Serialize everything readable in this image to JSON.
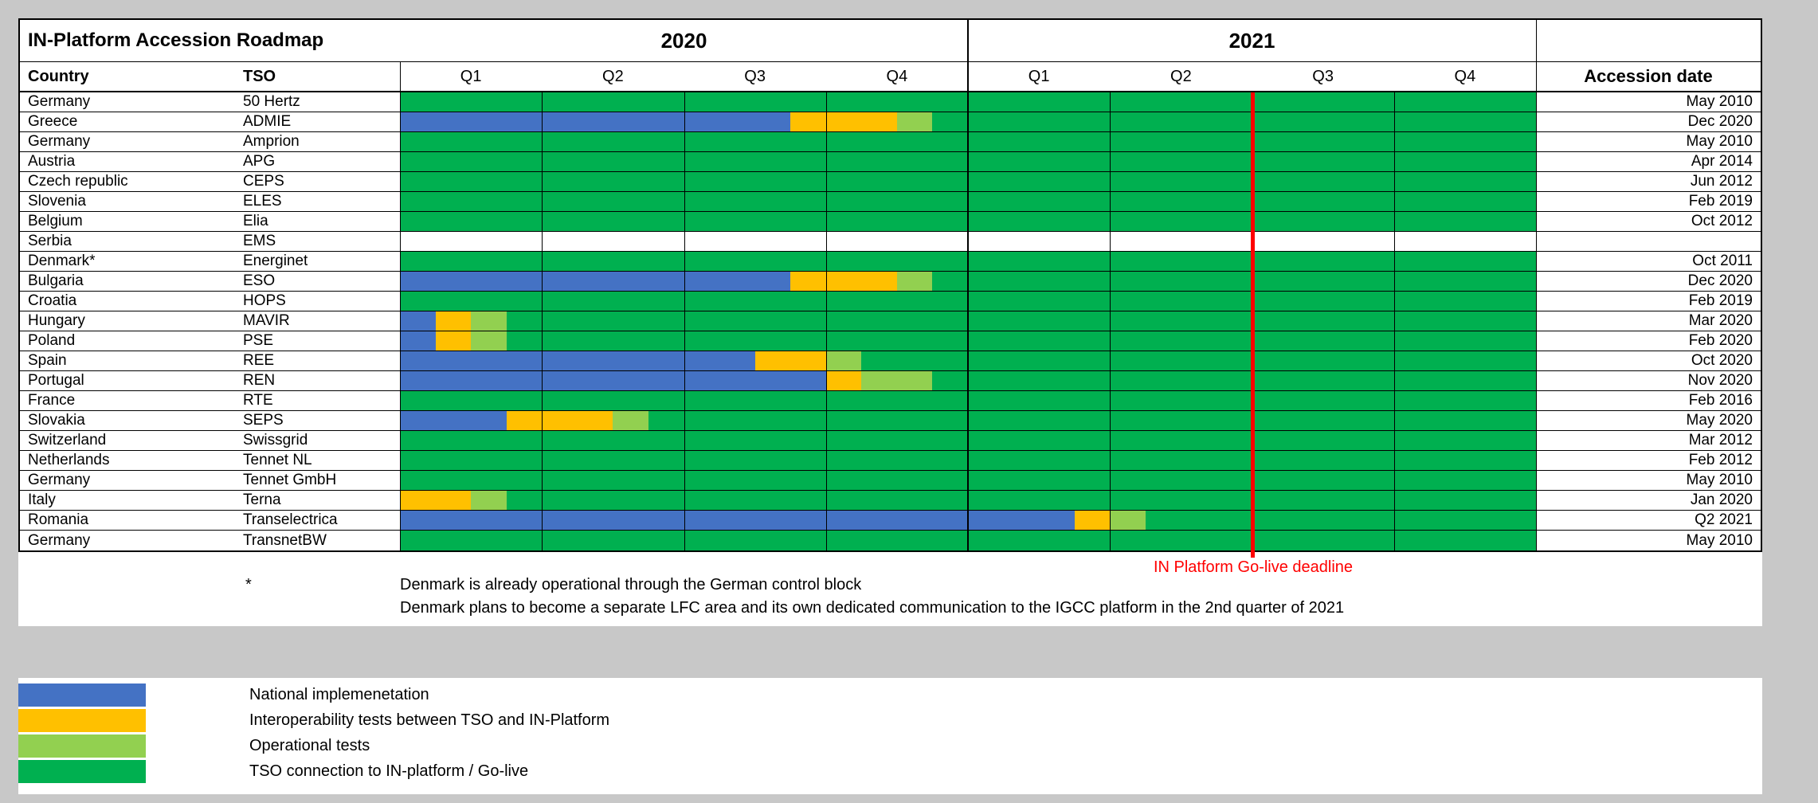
{
  "chart_data": {
    "type": "table",
    "subtype": "gantt-roadmap",
    "title": "IN-Platform Accession Roadmap",
    "canvas_bg": "#c8c8c8",
    "years": [
      {
        "label": "2020",
        "quarters": [
          "Q1",
          "Q2",
          "Q3",
          "Q4"
        ]
      },
      {
        "label": "2021",
        "quarters": [
          "Q1",
          "Q2",
          "Q3",
          "Q4"
        ]
      }
    ],
    "columns": {
      "country": "Country",
      "tso": "TSO",
      "accession": "Accession date"
    },
    "quarter_axis": {
      "min": 0,
      "max": 8,
      "unit": "quarters from start of 2020"
    },
    "phase_colors": {
      "national": "#4472C4",
      "interop": "#FFC000",
      "operational": "#92D050",
      "golive": "#00B050"
    },
    "deadline": {
      "label": "IN Platform Go-live deadline",
      "at_quarter": 6,
      "color": "#FF0000"
    },
    "rows": [
      {
        "country": "Germany",
        "tso": "50 Hertz",
        "accession_date": "May 2010",
        "segments": [
          {
            "phase": "golive",
            "from": 0,
            "to": 8
          }
        ]
      },
      {
        "country": "Greece",
        "tso": "ADMIE",
        "accession_date": "Dec 2020",
        "segments": [
          {
            "phase": "national",
            "from": 0,
            "to": 2.75
          },
          {
            "phase": "interop",
            "from": 2.75,
            "to": 3.5
          },
          {
            "phase": "operational",
            "from": 3.5,
            "to": 3.75
          },
          {
            "phase": "golive",
            "from": 3.75,
            "to": 8
          }
        ]
      },
      {
        "country": "Germany",
        "tso": "Amprion",
        "accession_date": "May 2010",
        "segments": [
          {
            "phase": "golive",
            "from": 0,
            "to": 8
          }
        ]
      },
      {
        "country": "Austria",
        "tso": "APG",
        "accession_date": "Apr 2014",
        "segments": [
          {
            "phase": "golive",
            "from": 0,
            "to": 8
          }
        ]
      },
      {
        "country": "Czech republic",
        "tso": "CEPS",
        "accession_date": "Jun 2012",
        "segments": [
          {
            "phase": "golive",
            "from": 0,
            "to": 8
          }
        ]
      },
      {
        "country": "Slovenia",
        "tso": "ELES",
        "accession_date": "Feb 2019",
        "segments": [
          {
            "phase": "golive",
            "from": 0,
            "to": 8
          }
        ]
      },
      {
        "country": "Belgium",
        "tso": "Elia",
        "accession_date": "Oct 2012",
        "segments": [
          {
            "phase": "golive",
            "from": 0,
            "to": 8
          }
        ]
      },
      {
        "country": "Serbia",
        "tso": "EMS",
        "accession_date": "",
        "segments": []
      },
      {
        "country": "Denmark*",
        "tso": "Energinet",
        "accession_date": "Oct 2011",
        "segments": [
          {
            "phase": "golive",
            "from": 0,
            "to": 8
          }
        ]
      },
      {
        "country": "Bulgaria",
        "tso": "ESO",
        "accession_date": "Dec 2020",
        "segments": [
          {
            "phase": "national",
            "from": 0,
            "to": 2.75
          },
          {
            "phase": "interop",
            "from": 2.75,
            "to": 3.5
          },
          {
            "phase": "operational",
            "from": 3.5,
            "to": 3.75
          },
          {
            "phase": "golive",
            "from": 3.75,
            "to": 8
          }
        ]
      },
      {
        "country": "Croatia",
        "tso": "HOPS",
        "accession_date": "Feb 2019",
        "segments": [
          {
            "phase": "golive",
            "from": 0,
            "to": 8
          }
        ]
      },
      {
        "country": "Hungary",
        "tso": "MAVIR",
        "accession_date": "Mar 2020",
        "segments": [
          {
            "phase": "national",
            "from": 0,
            "to": 0.25
          },
          {
            "phase": "interop",
            "from": 0.25,
            "to": 0.5
          },
          {
            "phase": "operational",
            "from": 0.5,
            "to": 0.75
          },
          {
            "phase": "golive",
            "from": 0.75,
            "to": 8
          }
        ]
      },
      {
        "country": "Poland",
        "tso": "PSE",
        "accession_date": "Feb 2020",
        "segments": [
          {
            "phase": "national",
            "from": 0,
            "to": 0.25
          },
          {
            "phase": "interop",
            "from": 0.25,
            "to": 0.5
          },
          {
            "phase": "operational",
            "from": 0.5,
            "to": 0.75
          },
          {
            "phase": "golive",
            "from": 0.75,
            "to": 8
          }
        ]
      },
      {
        "country": "Spain",
        "tso": "REE",
        "accession_date": "Oct 2020",
        "segments": [
          {
            "phase": "national",
            "from": 0,
            "to": 2.5
          },
          {
            "phase": "interop",
            "from": 2.5,
            "to": 3
          },
          {
            "phase": "operational",
            "from": 3,
            "to": 3.25
          },
          {
            "phase": "golive",
            "from": 3.25,
            "to": 8
          }
        ]
      },
      {
        "country": "Portugal",
        "tso": "REN",
        "accession_date": "Nov 2020",
        "segments": [
          {
            "phase": "national",
            "from": 0,
            "to": 3
          },
          {
            "phase": "interop",
            "from": 3,
            "to": 3.25
          },
          {
            "phase": "operational",
            "from": 3.25,
            "to": 3.75
          },
          {
            "phase": "golive",
            "from": 3.75,
            "to": 8
          }
        ]
      },
      {
        "country": "France",
        "tso": "RTE",
        "accession_date": "Feb 2016",
        "segments": [
          {
            "phase": "golive",
            "from": 0,
            "to": 8
          }
        ]
      },
      {
        "country": "Slovakia",
        "tso": "SEPS",
        "accession_date": "May 2020",
        "segments": [
          {
            "phase": "national",
            "from": 0,
            "to": 0.75
          },
          {
            "phase": "interop",
            "from": 0.75,
            "to": 1.5
          },
          {
            "phase": "operational",
            "from": 1.5,
            "to": 1.75
          },
          {
            "phase": "golive",
            "from": 1.75,
            "to": 8
          }
        ]
      },
      {
        "country": "Switzerland",
        "tso": "Swissgrid",
        "accession_date": "Mar 2012",
        "segments": [
          {
            "phase": "golive",
            "from": 0,
            "to": 8
          }
        ]
      },
      {
        "country": "Netherlands",
        "tso": "Tennet NL",
        "accession_date": "Feb 2012",
        "segments": [
          {
            "phase": "golive",
            "from": 0,
            "to": 8
          }
        ]
      },
      {
        "country": "Germany",
        "tso": "Tennet GmbH",
        "accession_date": "May 2010",
        "segments": [
          {
            "phase": "golive",
            "from": 0,
            "to": 8
          }
        ]
      },
      {
        "country": "Italy",
        "tso": "Terna",
        "accession_date": "Jan 2020",
        "segments": [
          {
            "phase": "interop",
            "from": 0,
            "to": 0.5
          },
          {
            "phase": "operational",
            "from": 0.5,
            "to": 0.75
          },
          {
            "phase": "golive",
            "from": 0.75,
            "to": 8
          }
        ]
      },
      {
        "country": "Romania",
        "tso": "Transelectrica",
        "accession_date": "Q2 2021",
        "segments": [
          {
            "phase": "national",
            "from": 0,
            "to": 4.75
          },
          {
            "phase": "interop",
            "from": 4.75,
            "to": 5
          },
          {
            "phase": "operational",
            "from": 5,
            "to": 5.25
          },
          {
            "phase": "golive",
            "from": 5.25,
            "to": 8
          }
        ]
      },
      {
        "country": "Germany",
        "tso": "TransnetBW",
        "accession_date": "May 2010",
        "segments": [
          {
            "phase": "golive",
            "from": 0,
            "to": 8
          }
        ]
      }
    ],
    "footnote": {
      "marker": "*",
      "line1": "Denmark is already operational through the German control block",
      "line2": "Denmark plans to become a separate LFC area and its own dedicated communication to the IGCC  platform in the 2nd quarter of 2021"
    },
    "legend": [
      {
        "phase": "national",
        "label": "National implemenetation"
      },
      {
        "phase": "interop",
        "label": "Interoperability tests between TSO and IN-Platform"
      },
      {
        "phase": "operational",
        "label": "Operational tests"
      },
      {
        "phase": "golive",
        "label": "TSO connection to IN-platform / Go-live"
      }
    ]
  }
}
